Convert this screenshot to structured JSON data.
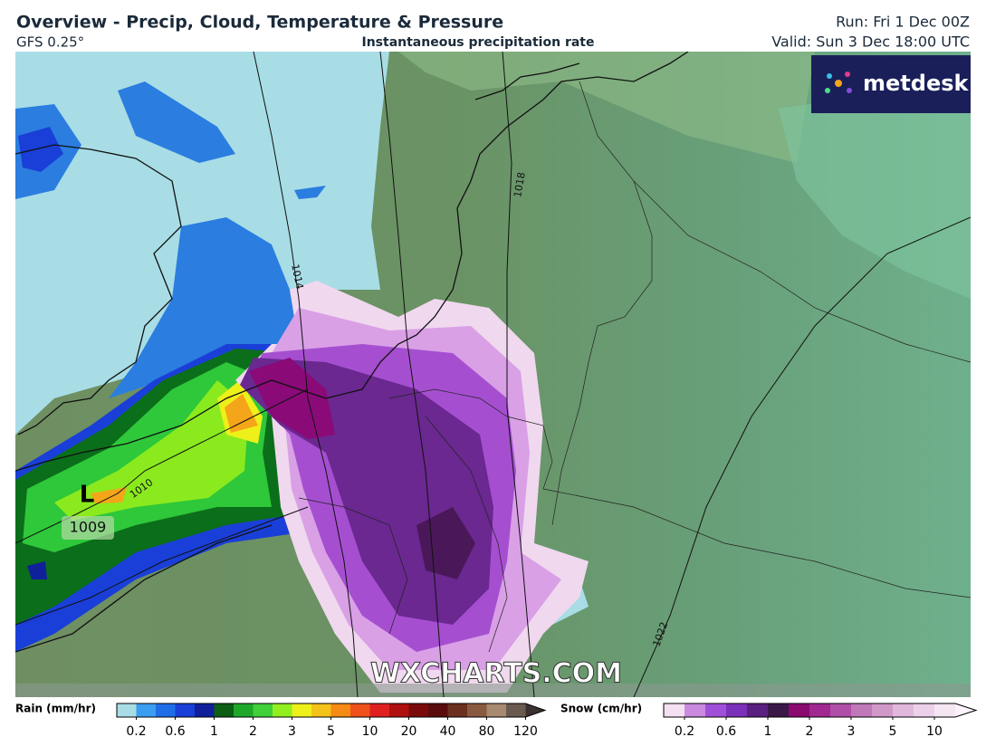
{
  "header": {
    "title": "Overview - Precip, Cloud, Temperature & Pressure",
    "model": "GFS 0.25°",
    "subtitle": "Instantaneous precipitation rate",
    "run": "Run: Fri 1 Dec 00Z",
    "valid": "Valid: Sun 3 Dec 18:00 UTC"
  },
  "map": {
    "isobar_labels": [
      "1010",
      "1014",
      "1018",
      "1022"
    ],
    "low": {
      "symbol": "L",
      "pressure": "1009"
    },
    "watermark": "WXCHARTS.COM",
    "logo": "metdesk"
  },
  "legend": {
    "rain": {
      "label": "Rain (mm/hr)",
      "ticks": [
        0.2,
        0.6,
        1,
        2,
        3,
        5,
        10,
        20,
        40,
        80,
        120
      ],
      "colors": [
        "#a8dde6",
        "#3c9ef0",
        "#1f6ee8",
        "#1a3fd8",
        "#101f9a",
        "#0b5e14",
        "#1ea82a",
        "#3fd03a",
        "#93ee1e",
        "#eef01a",
        "#f5c21a",
        "#f58a14",
        "#f0501a",
        "#e02020",
        "#b01010",
        "#7a0a0a",
        "#5a0c0c",
        "#6b3020",
        "#8a5a40",
        "#a88a70",
        "#6a5a50",
        "#3a3230"
      ]
    },
    "snow": {
      "label": "Snow (cm/hr)",
      "ticks": [
        0.2,
        0.6,
        1,
        2,
        3,
        5,
        10
      ],
      "colors": [
        "#f5e0f2",
        "#c98ae0",
        "#a050d8",
        "#7a30b8",
        "#5a2080",
        "#3a1848",
        "#8a0a70",
        "#a02890",
        "#b050a8",
        "#c078b8",
        "#d098c8",
        "#e0b8dc",
        "#ecd0ea",
        "#f5e6f4",
        "#fbf2fb"
      ]
    }
  }
}
